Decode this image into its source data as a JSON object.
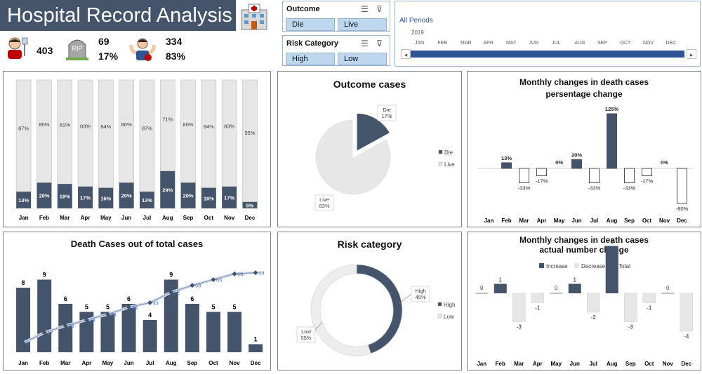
{
  "header": {
    "title": "Hospital Record Analysis",
    "total_cases": "403",
    "deaths": "69",
    "death_pct": "17%",
    "survived": "334",
    "survived_pct": "83%",
    "rip_label": "RIP"
  },
  "slicers": {
    "outcome": {
      "title": "Outcome",
      "options": [
        "Die",
        "Live"
      ]
    },
    "risk": {
      "title": "Risk Category",
      "options": [
        "High",
        "Low"
      ]
    }
  },
  "timeline": {
    "label": "All Periods",
    "year": "2019",
    "months": [
      "JAN",
      "FEB",
      "MAR",
      "APR",
      "MAY",
      "JUN",
      "JUL",
      "AUG",
      "SEP",
      "OCT",
      "NOV",
      "DEC"
    ],
    "left_arrow": "◂",
    "right_arrow": "▸"
  },
  "colors": {
    "navy": "#44546a",
    "dark": "#333f50",
    "light": "#e7e6e6",
    "blue": "#2f5597",
    "accent": "#4472c4"
  },
  "chart_data": [
    {
      "id": "stacked",
      "type": "bar",
      "title": "",
      "categories": [
        "Jan",
        "Feb",
        "Mar",
        "Apr",
        "May",
        "Jun",
        "Jul",
        "Aug",
        "Sep",
        "Oct",
        "Nov",
        "Dec"
      ],
      "series": [
        {
          "name": "Die",
          "values": [
            13,
            20,
            19,
            17,
            16,
            20,
            13,
            29,
            20,
            16,
            17,
            5
          ]
        },
        {
          "name": "Live",
          "values": [
            87,
            80,
            81,
            83,
            84,
            80,
            87,
            71,
            80,
            84,
            83,
            95
          ]
        }
      ],
      "ylim": [
        0,
        100
      ]
    },
    {
      "id": "outcome_pie",
      "type": "pie",
      "title": "Outcome cases",
      "slices": [
        {
          "name": "Die",
          "value": 17,
          "label": "Die\n17%"
        },
        {
          "name": "Live",
          "value": 83,
          "label": "Live\n83%"
        }
      ],
      "legend": [
        "Die",
        "Live"
      ]
    },
    {
      "id": "pct_change",
      "type": "bar",
      "title": "Monthly changes in death cases",
      "subtitle": "persentage change",
      "categories": [
        "Jan",
        "Feb",
        "Mar",
        "Apr",
        "May",
        "Jun",
        "Jul",
        "Aug",
        "Sep",
        "Oct",
        "Nov",
        "Dec"
      ],
      "values": [
        null,
        13,
        -33,
        -17,
        0,
        20,
        -33,
        125,
        -33,
        -17,
        0,
        -80
      ],
      "labels": [
        "",
        "13%",
        "-33%",
        "-17%",
        "0%",
        "20%",
        "-33%",
        "125%",
        "-33%",
        "-17%",
        "0%",
        "-80%"
      ],
      "ylim": [
        -80,
        125
      ]
    },
    {
      "id": "death_cases",
      "type": "bar",
      "title": "Death Cases out of total cases",
      "categories": [
        "Jan",
        "Feb",
        "Mar",
        "Apr",
        "May",
        "Jun",
        "Jul",
        "Aug",
        "Sep",
        "Oct",
        "Nov",
        "Dec"
      ],
      "series": [
        {
          "name": "Deaths",
          "values": [
            8,
            9,
            6,
            5,
            5,
            6,
            4,
            9,
            6,
            5,
            5,
            1
          ]
        },
        {
          "name": "Cumulative",
          "values": [
            8,
            17,
            23,
            28,
            33,
            39,
            43,
            52,
            58,
            63,
            68,
            69
          ]
        }
      ],
      "ylim": [
        0,
        10
      ],
      "cum_max": 70
    },
    {
      "id": "risk_donut",
      "type": "pie",
      "title": "Risk category",
      "slices": [
        {
          "name": "High",
          "value": 45,
          "label": "High\n45%"
        },
        {
          "name": "Low",
          "value": 55,
          "label": "Low\n55%"
        }
      ],
      "legend": [
        "High",
        "Low"
      ]
    },
    {
      "id": "waterfall",
      "type": "bar",
      "title": "Monthly changes in death cases",
      "subtitle": "actual number change",
      "categories": [
        "Jan",
        "Feb",
        "Mar",
        "Apr",
        "May",
        "Jun",
        "Jul",
        "Aug",
        "Sep",
        "Oct",
        "Nov",
        "Dec"
      ],
      "values": [
        0,
        1,
        -3,
        -1,
        0,
        1,
        -2,
        5,
        -3,
        -1,
        0,
        -4
      ],
      "legend": [
        "Increase",
        "Decrease",
        "Total"
      ],
      "ylim": [
        -4,
        5
      ]
    }
  ]
}
